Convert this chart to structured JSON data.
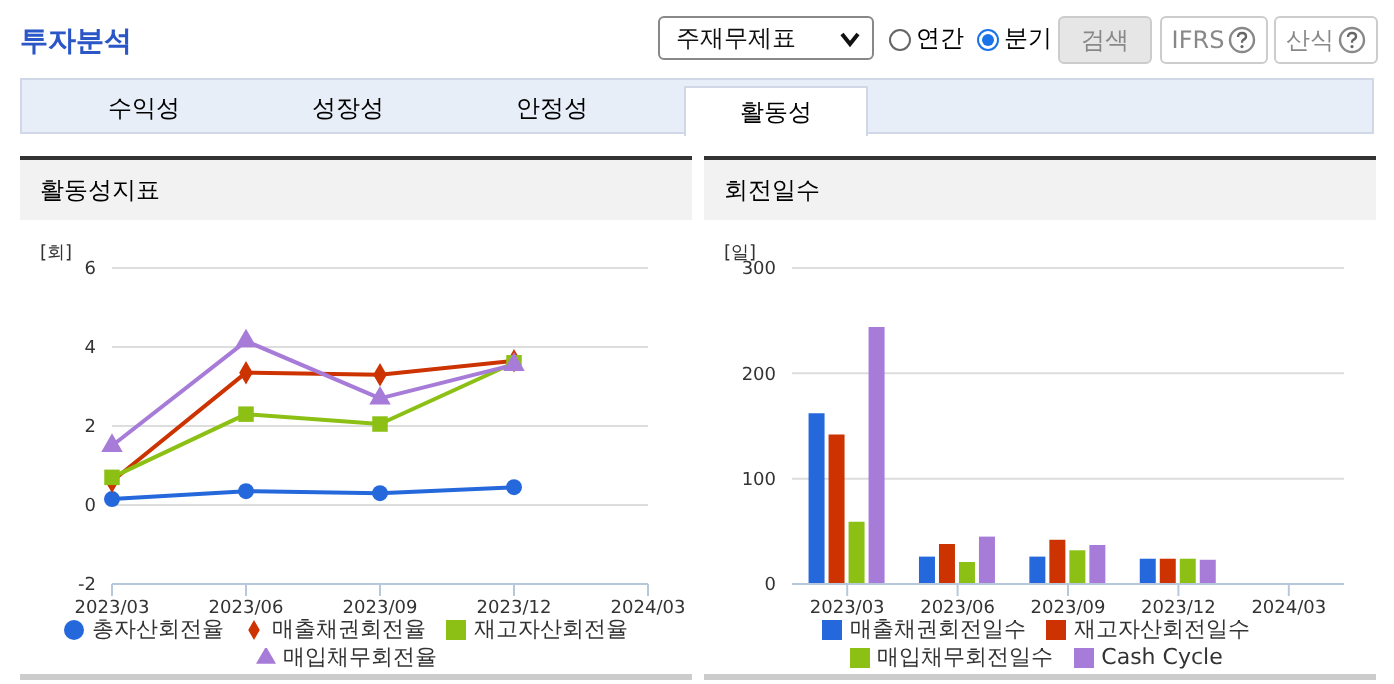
{
  "chart_data": [
    {
      "type": "other",
      "annotations": [
        "투자분석",
        "주재무제표",
        "연간",
        "분기",
        "검색",
        "IFRS",
        "산식",
        "수익성",
        "성장성",
        "안정성",
        "활동성"
      ]
    },
    {
      "type": "line",
      "title": "활동성지표",
      "ylabel": "[회]",
      "categories": [
        "2023/03",
        "2023/06",
        "2023/09",
        "2023/12",
        "2024/03"
      ],
      "series": [
        {
          "name": "총자산회전율",
          "color": "#2468dc",
          "marker": "circle",
          "values": [
            0.15,
            0.35,
            0.3,
            0.45,
            null
          ]
        },
        {
          "name": "매출채권회전율",
          "color": "#cc3300",
          "marker": "diamond",
          "values": [
            0.6,
            3.35,
            3.3,
            3.65,
            null
          ]
        },
        {
          "name": "재고자산회전율",
          "color": "#8cc014",
          "marker": "square",
          "values": [
            0.7,
            2.3,
            2.05,
            3.6,
            null
          ]
        },
        {
          "name": "매입채무회전율",
          "color": "#a77bd8",
          "marker": "triangle",
          "values": [
            1.5,
            4.15,
            2.7,
            3.55,
            null
          ]
        }
      ],
      "ylim": [
        -2,
        6
      ],
      "yticks": [
        -2,
        0,
        2,
        4,
        6
      ],
      "grid": "y",
      "legend": "bottom"
    },
    {
      "type": "bar",
      "title": "회전일수",
      "ylabel": "[일]",
      "categories": [
        "2023/03",
        "2023/06",
        "2023/09",
        "2023/12",
        "2024/03"
      ],
      "series": [
        {
          "name": "매출채권회전일수",
          "color": "#2468dc",
          "values": [
            162,
            26,
            26,
            24,
            null
          ]
        },
        {
          "name": "재고자산회전일수",
          "color": "#cc3300",
          "values": [
            142,
            38,
            42,
            24,
            null
          ]
        },
        {
          "name": "매입채무회전일수",
          "color": "#8cc014",
          "values": [
            59,
            21,
            32,
            24,
            null
          ]
        },
        {
          "name": "Cash Cycle",
          "color": "#a77bd8",
          "values": [
            244,
            45,
            37,
            23,
            null
          ]
        }
      ],
      "ylim": [
        0,
        300
      ],
      "yticks": [
        0,
        100,
        200,
        300
      ],
      "grid": "y",
      "legend": "bottom"
    }
  ]
}
